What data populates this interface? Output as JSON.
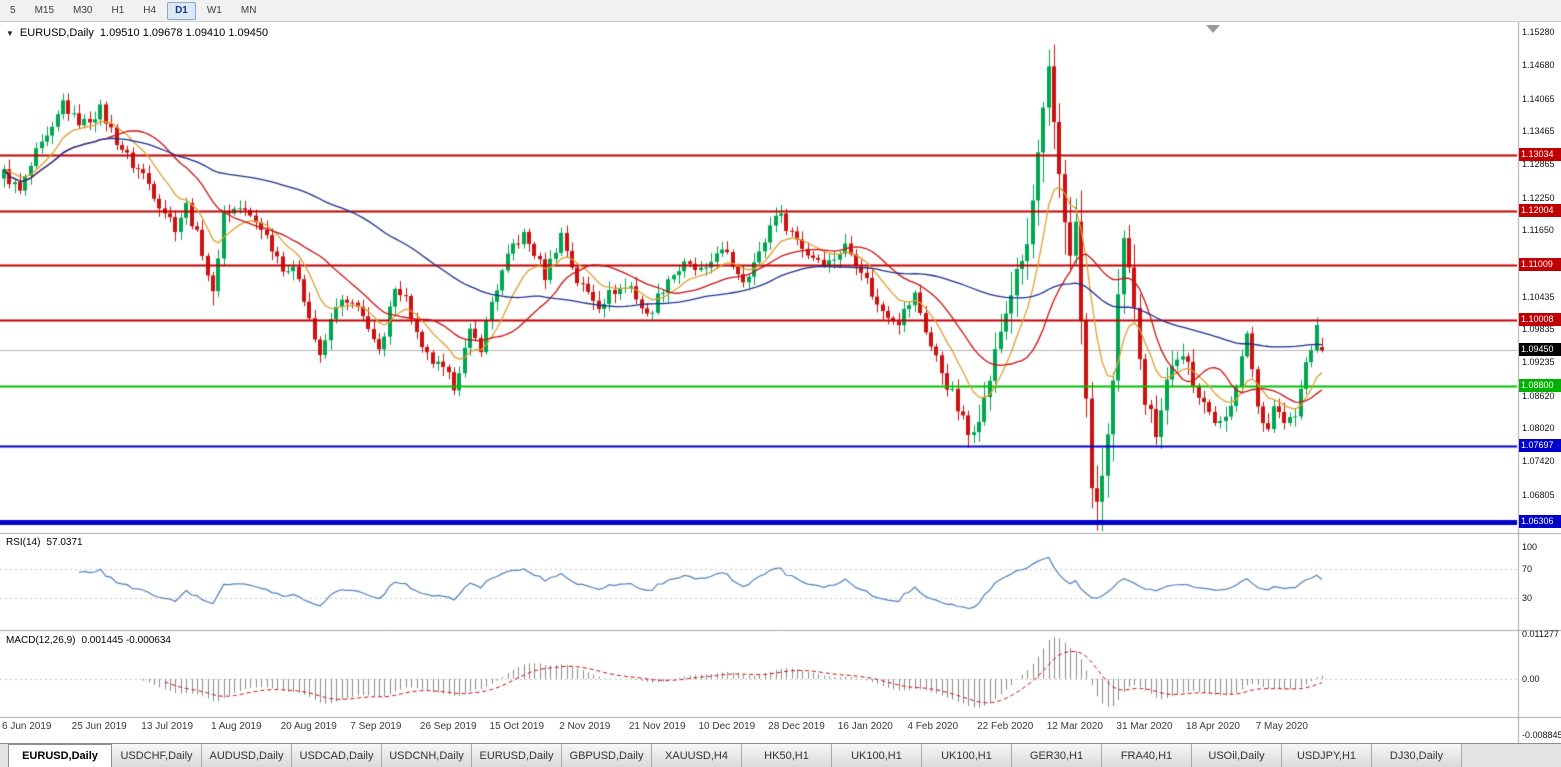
{
  "toolbar": {
    "periods": [
      {
        "label": "5",
        "active": false
      },
      {
        "label": "M15",
        "active": false
      },
      {
        "label": "M30",
        "active": false
      },
      {
        "label": "H1",
        "active": false
      },
      {
        "label": "H4",
        "active": false
      },
      {
        "label": "D1",
        "active": true
      },
      {
        "label": "W1",
        "active": false
      },
      {
        "label": "MN",
        "active": false
      }
    ]
  },
  "chart": {
    "symbol": "EURUSD,Daily",
    "ohlc_display": "1.09510 1.09678 1.09410 1.09450"
  },
  "price_axis": {
    "ticks": [
      "1.15280",
      "1.14680",
      "1.14065",
      "1.13465",
      "1.12865",
      "1.12250",
      "1.11650",
      "1.11035",
      "1.10435",
      "1.09835",
      "1.09235",
      "1.08620",
      "1.08020",
      "1.07420",
      "1.06805"
    ],
    "badges": [
      {
        "label": "1.13034",
        "price": 1.13034,
        "bg": "#c00000",
        "type": "resistance"
      },
      {
        "label": "1.12004",
        "price": 1.12004,
        "bg": "#c00000",
        "type": "resistance"
      },
      {
        "label": "1.11009",
        "price": 1.11009,
        "bg": "#c00000",
        "type": "resistance"
      },
      {
        "label": "1.10008",
        "price": 1.10008,
        "bg": "#c00000",
        "type": "resistance"
      },
      {
        "label": "1.09450",
        "price": 1.0945,
        "bg": "#000000",
        "type": "current-price"
      },
      {
        "label": "1.08800",
        "price": 1.088,
        "bg": "#00b300",
        "type": "support"
      },
      {
        "label": "1.07697",
        "price": 1.07697,
        "bg": "#0000cc",
        "type": "support"
      },
      {
        "label": "1.06306",
        "price": 1.06306,
        "bg": "#0000cc",
        "type": "support"
      }
    ]
  },
  "rsi_panel": {
    "label": "RSI(14)",
    "value": "57.0371",
    "ticks": [
      {
        "label": "100",
        "v": 100
      },
      {
        "label": "70",
        "v": 70
      },
      {
        "label": "30",
        "v": 30
      }
    ]
  },
  "macd_panel": {
    "label": "MACD(12,26,9)",
    "values": "0.001445 -0.000634",
    "max_label": "0.011277",
    "zero_label": "0.00",
    "min_label": "-0.008845"
  },
  "date_axis": {
    "labels": [
      "6 Jun 2019",
      "25 Jun 2019",
      "13 Jul 2019",
      "1 Aug 2019",
      "20 Aug 2019",
      "7 Sep 2019",
      "26 Sep 2019",
      "15 Oct 2019",
      "2 Nov 2019",
      "21 Nov 2019",
      "10 Dec 2019",
      "28 Dec 2019",
      "16 Jan 2020",
      "4 Feb 2020",
      "22 Feb 2020",
      "12 Mar 2020",
      "31 Mar 2020",
      "18 Apr 2020",
      "7 May 2020"
    ],
    "candles_per_label": 13
  },
  "tabs": [
    {
      "label": "EURUSD,Daily",
      "active": true
    },
    {
      "label": "USDCHF,Daily",
      "active": false
    },
    {
      "label": "AUDUSD,Daily",
      "active": false
    },
    {
      "label": "USDCAD,Daily",
      "active": false
    },
    {
      "label": "USDCNH,Daily",
      "active": false
    },
    {
      "label": "EURUSD,Daily",
      "active": false
    },
    {
      "label": "GBPUSD,Daily",
      "active": false
    },
    {
      "label": "XAUUSD,H4",
      "active": false
    },
    {
      "label": "HK50,H1",
      "active": false
    },
    {
      "label": "UK100,H1",
      "active": false
    },
    {
      "label": "UK100,H1",
      "active": false
    },
    {
      "label": "GER30,H1",
      "active": false
    },
    {
      "label": "FRA40,H1",
      "active": false
    },
    {
      "label": "USOil,Daily",
      "active": false
    },
    {
      "label": "USDJPY,H1",
      "active": false
    },
    {
      "label": "DJ30,Daily",
      "active": false
    }
  ],
  "chart_data": {
    "type": "candlestick",
    "symbol": "EURUSD",
    "timeframe": "Daily",
    "last_bar": {
      "open": 1.0951,
      "high": 1.09678,
      "low": 1.0941,
      "close": 1.0945
    },
    "y_range": {
      "top": 1.1547,
      "bottom": 1.061
    },
    "candle_count": 247,
    "price_path": [
      [
        0,
        1.127
      ],
      [
        3,
        1.1235
      ],
      [
        6,
        1.1305
      ],
      [
        9,
        1.1345
      ],
      [
        11,
        1.14
      ],
      [
        13,
        1.137
      ],
      [
        15,
        1.1362
      ],
      [
        18,
        1.1386
      ],
      [
        21,
        1.133
      ],
      [
        24,
        1.1285
      ],
      [
        26,
        1.1268
      ],
      [
        29,
        1.1215
      ],
      [
        32,
        1.1172
      ],
      [
        34,
        1.121
      ],
      [
        37,
        1.1128
      ],
      [
        39,
        1.1045
      ],
      [
        41,
        1.1198
      ],
      [
        44,
        1.1206
      ],
      [
        48,
        1.1172
      ],
      [
        52,
        1.11
      ],
      [
        55,
        1.1082
      ],
      [
        57,
        1.1005
      ],
      [
        59,
        1.0928
      ],
      [
        62,
        1.1032
      ],
      [
        65,
        1.1028
      ],
      [
        68,
        1.0992
      ],
      [
        70,
        1.0938
      ],
      [
        71,
        1.0965
      ],
      [
        73,
        1.1068
      ],
      [
        75,
        1.104
      ],
      [
        78,
        1.0942
      ],
      [
        82,
        1.0906
      ],
      [
        84,
        1.0882
      ],
      [
        87,
        1.0975
      ],
      [
        89,
        1.0952
      ],
      [
        91,
        1.1034
      ],
      [
        95,
        1.1138
      ],
      [
        97,
        1.1155
      ],
      [
        99,
        1.1124
      ],
      [
        101,
        1.1082
      ],
      [
        104,
        1.1158
      ],
      [
        107,
        1.1072
      ],
      [
        111,
        1.103
      ],
      [
        114,
        1.1056
      ],
      [
        117,
        1.1062
      ],
      [
        120,
        1.1006
      ],
      [
        124,
        1.1078
      ],
      [
        127,
        1.11
      ],
      [
        131,
        1.1086
      ],
      [
        133,
        1.113
      ],
      [
        135,
        1.1116
      ],
      [
        138,
        1.1076
      ],
      [
        141,
        1.112
      ],
      [
        144,
        1.12
      ],
      [
        147,
        1.1162
      ],
      [
        150,
        1.1122
      ],
      [
        154,
        1.1106
      ],
      [
        157,
        1.1136
      ],
      [
        160,
        1.1096
      ],
      [
        163,
        1.1026
      ],
      [
        167,
        1.1
      ],
      [
        170,
        1.1046
      ],
      [
        173,
        1.0952
      ],
      [
        177,
        1.0862
      ],
      [
        180,
        1.079
      ],
      [
        183,
        1.0852
      ],
      [
        186,
        1.098
      ],
      [
        188,
        1.1052
      ],
      [
        191,
        1.1136
      ],
      [
        193,
        1.1298
      ],
      [
        195,
        1.1452
      ],
      [
        197,
        1.1272
      ],
      [
        199,
        1.111
      ],
      [
        200,
        1.118
      ],
      [
        201,
        1.0995
      ],
      [
        203,
        1.0702
      ],
      [
        204,
        1.0652
      ],
      [
        206,
        1.079
      ],
      [
        207,
        1.0882
      ],
      [
        208,
        1.1032
      ],
      [
        209,
        1.114
      ],
      [
        211,
        1.1032
      ],
      [
        213,
        1.0856
      ],
      [
        215,
        1.08
      ],
      [
        217,
        1.0892
      ],
      [
        219,
        1.0936
      ],
      [
        221,
        1.0912
      ],
      [
        222,
        1.0876
      ],
      [
        224,
        1.0862
      ],
      [
        226,
        1.0802
      ],
      [
        228,
        1.0832
      ],
      [
        230,
        1.0872
      ],
      [
        232,
        1.098
      ],
      [
        234,
        1.0842
      ],
      [
        236,
        1.0802
      ],
      [
        237,
        1.0846
      ],
      [
        239,
        1.0812
      ],
      [
        241,
        1.0822
      ],
      [
        243,
        1.0922
      ],
      [
        245,
        1.0982
      ],
      [
        246,
        1.0945
      ]
    ],
    "extremes": [
      {
        "i": 195,
        "high": 1.1495
      },
      {
        "i": 204,
        "low": 1.0636
      },
      {
        "i": 39,
        "low": 1.1027
      },
      {
        "i": 84,
        "low": 1.0879
      },
      {
        "i": 180,
        "low": 1.0778
      }
    ],
    "levels": [
      {
        "price": 1.13034,
        "color": "#c00000",
        "width": 2
      },
      {
        "price": 1.12004,
        "color": "#c00000",
        "width": 2
      },
      {
        "price": 1.11009,
        "color": "#c00000",
        "width": 2
      },
      {
        "price": 1.10008,
        "color": "#c00000",
        "width": 2
      },
      {
        "price": 1.088,
        "color": "#00c000",
        "width": 2
      },
      {
        "price": 1.07697,
        "color": "#0000cc",
        "width": 2
      },
      {
        "price": 1.06306,
        "color": "#0000cc",
        "width": 5
      }
    ],
    "current_price_line": {
      "price": 1.0945,
      "color": "#b5b5b5"
    },
    "moving_averages": [
      {
        "name": "fast",
        "period": 10,
        "method": "ema",
        "color": "#e0a030"
      },
      {
        "name": "mid",
        "period": 20,
        "method": "sma",
        "color": "#cc1111"
      },
      {
        "name": "slow",
        "period": 60,
        "method": "sma",
        "color": "#1c2f8c"
      }
    ],
    "indicators": {
      "rsi": {
        "period": 14,
        "current": 57.0371,
        "levels": [
          70,
          30
        ]
      },
      "macd": {
        "fast": 12,
        "slow": 26,
        "signal": 9,
        "current_main": 0.001445,
        "current_signal": -0.000634,
        "scale_max": 0.011277,
        "scale_min": -0.008845
      }
    },
    "colors": {
      "up": "#00a651",
      "down": "#cc1111",
      "rsi_line": "#4f81bd",
      "macd_hist": "#8c8c8c",
      "macd_signal": "#cc1111"
    }
  }
}
